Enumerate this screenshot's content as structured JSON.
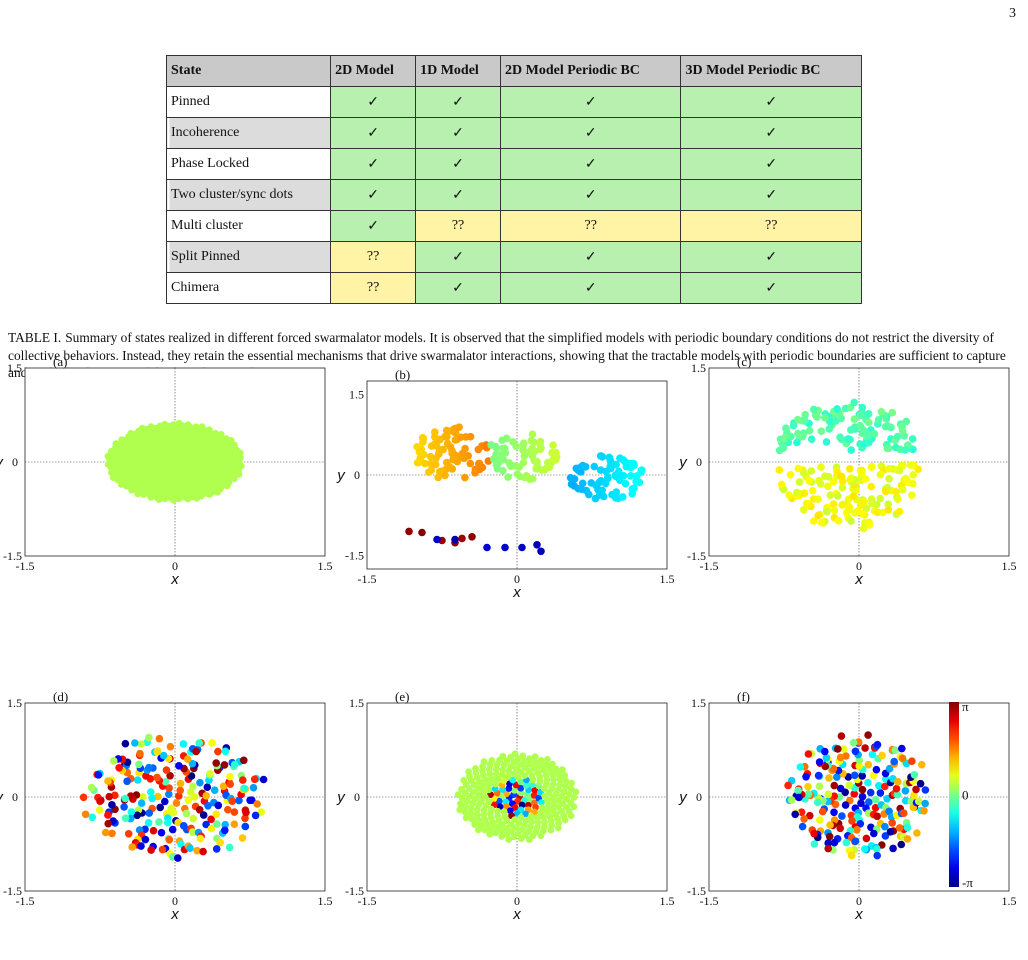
{
  "page_number": "3",
  "table": {
    "headers": [
      "State",
      "2D Model",
      "1D Model",
      "2D Model Periodic BC",
      "3D Model Periodic BC"
    ],
    "rows": [
      {
        "label": "Pinned",
        "values": [
          "✓",
          "✓",
          "✓",
          "✓"
        ]
      },
      {
        "label": "Incoherence",
        "values": [
          "✓",
          "✓",
          "✓",
          "✓"
        ]
      },
      {
        "label": "Phase Locked",
        "values": [
          "✓",
          "✓",
          "✓",
          "✓"
        ]
      },
      {
        "label": "Two cluster/sync dots",
        "values": [
          "✓",
          "✓",
          "✓",
          "✓"
        ]
      },
      {
        "label": "Multi cluster",
        "values": [
          "✓",
          "??",
          "??",
          "??"
        ]
      },
      {
        "label": "Split Pinned",
        "values": [
          "??",
          "✓",
          "✓",
          "✓"
        ]
      },
      {
        "label": "Chimera",
        "values": [
          "??",
          "✓",
          "✓",
          "✓"
        ]
      }
    ],
    "colors": {
      "yes": "#b8f0b0",
      "no": "#fff3a6",
      "header": "#c9c9c9"
    }
  },
  "caption": {
    "lead": "TABLE I.",
    "text": "Summary of states realized in different forced swarmalator models. It is observed that the simplified models with periodic boundary conditions do not restrict the diversity of collective behaviors. Instead, they retain the essential mechanisms that drive swarmalator interactions, showing that the tractable models with periodic boundaries are sufficient to capture and study the dynamics of the forced swarmalator systems."
  },
  "chart_data": [
    {
      "type": "scatter",
      "panel": "(a)",
      "pattern": "uniform disk, all same phase",
      "xlabel": "x",
      "ylabel": "y",
      "xlim": [
        -1.5,
        1.5
      ],
      "ylim": [
        -1.5,
        1.5
      ],
      "x_ticks": [
        "-1.5",
        "0",
        "1.5"
      ],
      "y_ticks": [
        "1.5",
        "0",
        "-1.5"
      ],
      "radius_x": 0.68,
      "radius_y": 0.62,
      "phase": 0.3
    },
    {
      "type": "scatter",
      "panel": "(b)",
      "pattern": "multi cluster",
      "xlabel": "x",
      "ylabel": "y",
      "xlim": [
        -1.5,
        1.5
      ],
      "ylim": [
        -1.75,
        1.75
      ],
      "x_ticks": [
        "-1.5",
        "0",
        "1.5"
      ],
      "y_ticks": [
        "1.5",
        "0",
        "-1.5"
      ],
      "clusters": [
        {
          "cx": -0.65,
          "cy": 0.4,
          "rx": 0.38,
          "ry": 0.5,
          "phase": 1.3,
          "n": 80
        },
        {
          "cx": 0.05,
          "cy": 0.35,
          "rx": 0.35,
          "ry": 0.45,
          "phase": 0.2,
          "n": 65
        },
        {
          "cx": 0.9,
          "cy": -0.05,
          "rx": 0.38,
          "ry": 0.42,
          "phase": -1.0,
          "n": 70
        }
      ],
      "points": [
        [
          -1.08,
          -1.05,
          3.05
        ],
        [
          -0.95,
          -1.07,
          3.1
        ],
        [
          -0.75,
          -1.22,
          3.0
        ],
        [
          -0.62,
          -1.26,
          3.1
        ],
        [
          -0.55,
          -1.18,
          2.95
        ],
        [
          -0.45,
          -1.15,
          3.05
        ],
        [
          -0.62,
          -1.2,
          -2.9
        ],
        [
          -0.8,
          -1.2,
          -2.7
        ],
        [
          -0.3,
          -1.35,
          -2.6
        ],
        [
          -0.12,
          -1.35,
          -2.65
        ],
        [
          0.05,
          -1.35,
          -2.7
        ],
        [
          0.2,
          -1.3,
          -2.8
        ],
        [
          0.24,
          -1.42,
          -2.75
        ]
      ]
    },
    {
      "type": "scatter",
      "panel": "(c)",
      "pattern": "two clusters",
      "xlabel": "x",
      "ylabel": "y",
      "xlim": [
        -1.5,
        1.5
      ],
      "ylim": [
        -1.5,
        1.5
      ],
      "x_ticks": [
        "-1.5",
        "0",
        "1.5"
      ],
      "y_ticks": [
        "1.5",
        "0",
        "-1.5"
      ],
      "clusters": [
        {
          "cx": -0.1,
          "cy": 0.18,
          "rx": 0.72,
          "ry": 0.78,
          "half": "upper",
          "phase": -0.3,
          "n": 110
        },
        {
          "cx": -0.1,
          "cy": -0.05,
          "rx": 0.72,
          "ry": 1.05,
          "half": "lower",
          "phase": 0.7,
          "n": 140
        }
      ]
    },
    {
      "type": "scatter",
      "panel": "(d)",
      "pattern": "incoherence",
      "xlabel": "x",
      "ylabel": "y",
      "xlim": [
        -1.5,
        1.5
      ],
      "ylim": [
        -1.5,
        1.5
      ],
      "x_ticks": [
        "-1.5",
        "0",
        "1.5"
      ],
      "y_ticks": [
        "1.5",
        "0",
        "-1.5"
      ],
      "radius_x": 0.9,
      "radius_y": 1.0,
      "n": 240
    },
    {
      "type": "scatter",
      "panel": "(e)",
      "pattern": "chimera",
      "xlabel": "x",
      "ylabel": "y",
      "xlim": [
        -1.5,
        1.5
      ],
      "ylim": [
        -1.5,
        1.5
      ],
      "x_ticks": [
        "-1.5",
        "0",
        "1.5"
      ],
      "y_ticks": [
        "1.5",
        "0",
        "-1.5"
      ],
      "radius_x": 0.6,
      "radius_y": 0.7,
      "phase": 0.3,
      "n": 260
    },
    {
      "type": "scatter",
      "panel": "(f)",
      "pattern": "incoherence",
      "xlabel": "x",
      "ylabel": "y",
      "xlim": [
        -1.5,
        1.5
      ],
      "ylim": [
        -1.5,
        1.5
      ],
      "x_ticks": [
        "-1.5",
        "0",
        "1.5"
      ],
      "y_ticks": [
        "1.5",
        "0",
        "-1.5"
      ],
      "radius_x": 0.72,
      "radius_y": 1.0,
      "n": 230,
      "colorbar": {
        "labels": [
          "π",
          "0",
          "-π"
        ],
        "range": [
          -3.14159,
          3.14159
        ],
        "colormap": "jet"
      }
    }
  ]
}
